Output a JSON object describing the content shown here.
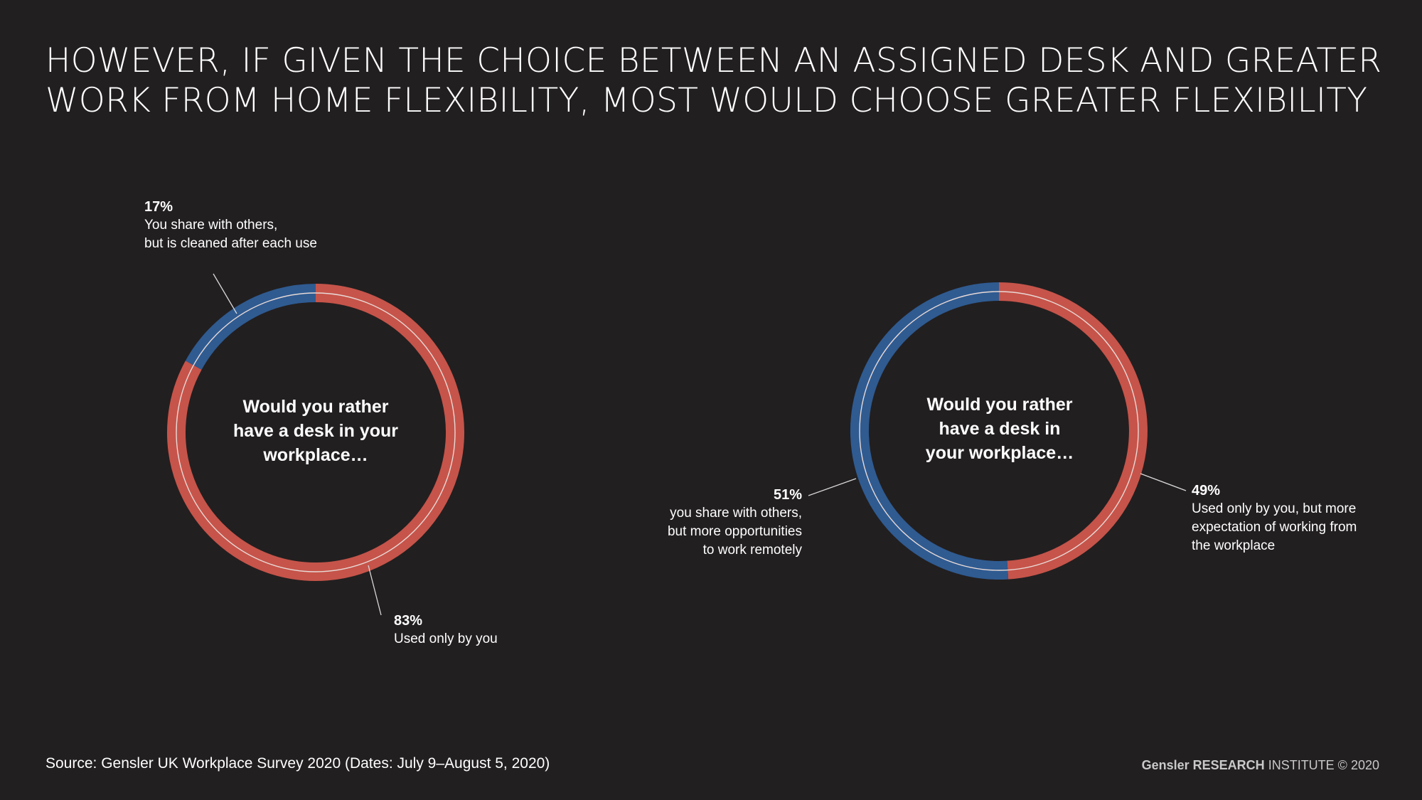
{
  "title": {
    "line1": "HOWEVER, IF GIVEN THE CHOICE BETWEEN AN ASSIGNED DESK AND GREATER",
    "line2": "WORK FROM HOME FLEXIBILITY, MOST WOULD CHOOSE GREATER FLEXIBILITY"
  },
  "colors": {
    "background": "#221f20",
    "red": "#c6544a",
    "blue": "#2f5b91",
    "separator": "#e8d9d6"
  },
  "chart_data": [
    {
      "type": "pie",
      "center_label": [
        "Would you rather",
        "have a desk in your",
        "workplace…"
      ],
      "slices": [
        {
          "label_lines": [
            "You share with others,",
            "but is cleaned after each use"
          ],
          "value": 17,
          "value_label": "17%",
          "color": "#2f5b91"
        },
        {
          "label_lines": [
            "Used only by you"
          ],
          "value": 83,
          "value_label": "83%",
          "color": "#c6544a"
        }
      ]
    },
    {
      "type": "pie",
      "center_label": [
        "Would you rather",
        "have a desk in",
        "your workplace…"
      ],
      "slices": [
        {
          "label_lines": [
            "you share with others,",
            "but more opportunities",
            "to work remotely"
          ],
          "value": 51,
          "value_label": "51%",
          "color": "#2f5b91"
        },
        {
          "label_lines": [
            "Used only by you, but more",
            "expectation of working from",
            "the workplace"
          ],
          "value": 49,
          "value_label": "49%",
          "color": "#c6544a"
        }
      ]
    }
  ],
  "footer": {
    "source": "Source: Gensler UK Workplace Survey 2020 (Dates: July 9–August 5, 2020)",
    "brand_bold": "Gensler RESEARCH",
    "brand_light": "INSTITUTE © 2020"
  }
}
